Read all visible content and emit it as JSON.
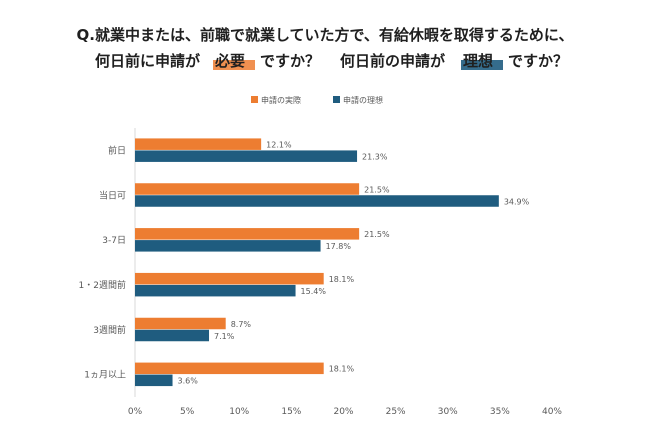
{
  "title": {
    "line1": "Q.就業中または、前職で就業していた方で、有給休暇を取得するために、",
    "line2a": "何日前に申請が",
    "emph1": "必要",
    "line2b": "ですか？",
    "line2c": "何日前の申請が",
    "emph2": "理想",
    "line2d": "ですか？"
  },
  "colors": {
    "actual": "#ED7D31",
    "ideal": "#1F5C7F",
    "underline": "#ED7D31",
    "underline2": "#1F5C7F"
  },
  "chart_data": {
    "type": "bar",
    "orientation": "horizontal",
    "categories": [
      "前日",
      "当日可",
      "3-7日",
      "1・2週間前",
      "3週間前",
      "1ヵ月以上"
    ],
    "series": [
      {
        "name": "申請の実際",
        "values": [
          12.1,
          21.5,
          21.5,
          18.1,
          8.7,
          18.1
        ],
        "labels": [
          "12.1%",
          "21.5%",
          "21.5%",
          "18.1%",
          "8.7%",
          "18.1%"
        ]
      },
      {
        "name": "申請の理想",
        "values": [
          21.3,
          34.9,
          17.8,
          15.4,
          7.1,
          3.6
        ],
        "labels": [
          "21.3%",
          "34.9%",
          "17.8%",
          "15.4%",
          "7.1%",
          "3.6%"
        ]
      }
    ],
    "xlim": [
      0,
      40
    ],
    "xticks": [
      "0%",
      "5%",
      "10%",
      "15%",
      "20%",
      "25%",
      "30%",
      "35%",
      "40%"
    ],
    "legend": "top",
    "grid": false
  }
}
